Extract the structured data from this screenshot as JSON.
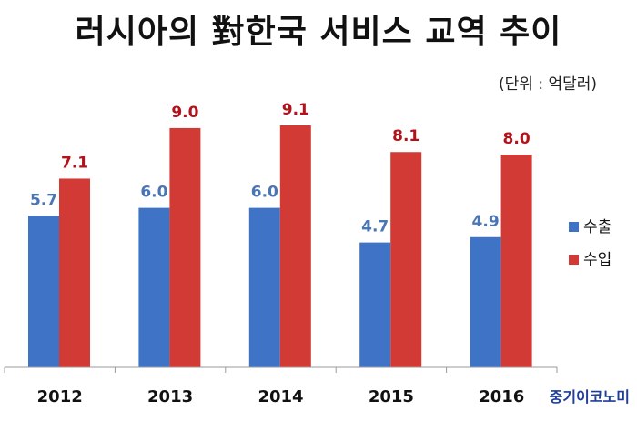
{
  "chart_data": {
    "type": "bar",
    "title": "러시아의 對한국 서비스 교역 추이",
    "unit": "(단위 : 억달러)",
    "categories": [
      "2012",
      "2013",
      "2014",
      "2015",
      "2016"
    ],
    "series": [
      {
        "name": "수출",
        "color": "#3f73c6",
        "label_color": "#4a75b5",
        "values": [
          5.7,
          6.0,
          6.0,
          4.7,
          4.9
        ]
      },
      {
        "name": "수입",
        "color": "#d23a35",
        "label_color": "#b3121b",
        "values": [
          7.1,
          9.0,
          9.1,
          8.1,
          8.0
        ]
      }
    ],
    "ylim": [
      0,
      10.4
    ],
    "grid": false,
    "legend_position": "right"
  },
  "watermark": "중기이코노미"
}
